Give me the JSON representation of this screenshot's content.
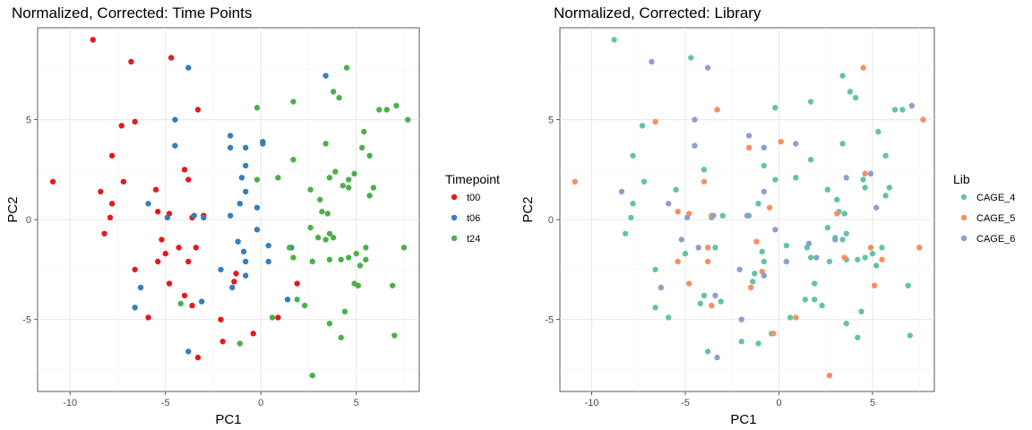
{
  "chart_data": [
    {
      "type": "scatter",
      "title": "Normalized, Corrected: Time Points",
      "xlabel": "PC1",
      "ylabel": "PC2",
      "xlim": [
        -11.7,
        8.3
      ],
      "ylim": [
        -8.6,
        9.6
      ],
      "xticks": [
        -10,
        -5,
        0,
        5
      ],
      "yticks": [
        -5,
        0,
        5
      ],
      "grid": true,
      "legend": {
        "title": "Timepoint",
        "placement": "right"
      },
      "series": [
        {
          "name": "t00",
          "color": "#e41a1c",
          "points": [
            [
              -8.8,
              9.0
            ],
            [
              -6.8,
              7.9
            ],
            [
              -4.7,
              8.1
            ],
            [
              -3.3,
              5.5
            ],
            [
              -7.3,
              4.7
            ],
            [
              -6.6,
              4.9
            ],
            [
              -7.8,
              3.2
            ],
            [
              -4.0,
              2.5
            ],
            [
              -10.9,
              1.9
            ],
            [
              -7.2,
              1.9
            ],
            [
              -5.5,
              1.5
            ],
            [
              -3.8,
              2.0
            ],
            [
              -8.4,
              1.4
            ],
            [
              -7.8,
              0.8
            ],
            [
              -7.9,
              0.1
            ],
            [
              -8.2,
              -0.7
            ],
            [
              -4.8,
              0.3
            ],
            [
              -5.4,
              0.4
            ],
            [
              -3.6,
              0.1
            ],
            [
              -3.0,
              0.2
            ],
            [
              -5.2,
              -1.0
            ],
            [
              -5.0,
              -1.7
            ],
            [
              -4.3,
              -1.4
            ],
            [
              -3.4,
              -1.4
            ],
            [
              -5.4,
              -2.1
            ],
            [
              -3.8,
              -2.1
            ],
            [
              -6.6,
              -2.5
            ],
            [
              -4.8,
              -3.2
            ],
            [
              -4.0,
              -3.8
            ],
            [
              -1.4,
              -3.1
            ],
            [
              -3.6,
              -4.3
            ],
            [
              -5.9,
              -4.9
            ],
            [
              -2.1,
              -5.0
            ],
            [
              -0.4,
              -5.7
            ],
            [
              0.9,
              -4.9
            ],
            [
              -2.0,
              -6.1
            ],
            [
              -3.3,
              -6.9
            ],
            [
              -1.3,
              -2.7
            ],
            [
              1.9,
              -3.2
            ]
          ]
        },
        {
          "name": "t06",
          "color": "#377eb8",
          "points": [
            [
              -3.8,
              7.6
            ],
            [
              -4.5,
              5.0
            ],
            [
              -4.5,
              3.7
            ],
            [
              -1.6,
              4.2
            ],
            [
              -1.6,
              3.6
            ],
            [
              -0.8,
              3.6
            ],
            [
              0.1,
              3.9
            ],
            [
              0.1,
              3.8
            ],
            [
              -0.8,
              2.7
            ],
            [
              -1.0,
              2.1
            ],
            [
              -0.8,
              1.4
            ],
            [
              -1.1,
              0.8
            ],
            [
              -1.6,
              0.2
            ],
            [
              -5.9,
              0.8
            ],
            [
              -4.9,
              0.1
            ],
            [
              -3.5,
              0.2
            ],
            [
              -3.0,
              0.1
            ],
            [
              -0.2,
              0.6
            ],
            [
              -0.2,
              -0.5
            ],
            [
              -1.2,
              -1.1
            ],
            [
              -0.9,
              -1.6
            ],
            [
              -2.1,
              -2.5
            ],
            [
              -0.8,
              -2.1
            ],
            [
              0.4,
              -1.3
            ],
            [
              1.6,
              -1.4
            ],
            [
              0.4,
              -2.1
            ],
            [
              -1.5,
              -3.4
            ],
            [
              -0.8,
              -2.8
            ],
            [
              -6.3,
              -3.4
            ],
            [
              -6.6,
              -4.4
            ],
            [
              -3.1,
              -4.1
            ],
            [
              1.4,
              -4.0
            ],
            [
              3.4,
              7.2
            ],
            [
              -3.8,
              -6.6
            ]
          ]
        },
        {
          "name": "t24",
          "color": "#4daf4a",
          "points": [
            [
              4.5,
              7.6
            ],
            [
              3.8,
              6.4
            ],
            [
              4.1,
              6.1
            ],
            [
              6.2,
              5.5
            ],
            [
              6.6,
              5.5
            ],
            [
              7.1,
              5.7
            ],
            [
              7.7,
              5.0
            ],
            [
              -0.2,
              5.6
            ],
            [
              1.7,
              5.9
            ],
            [
              5.4,
              4.4
            ],
            [
              3.4,
              3.8
            ],
            [
              5.3,
              3.6
            ],
            [
              5.7,
              3.2
            ],
            [
              1.7,
              3.0
            ],
            [
              3.6,
              2.1
            ],
            [
              3.9,
              2.4
            ],
            [
              4.9,
              2.3
            ],
            [
              4.6,
              2.0
            ],
            [
              4.6,
              1.6
            ],
            [
              4.3,
              1.7
            ],
            [
              5.9,
              1.6
            ],
            [
              5.7,
              1.2
            ],
            [
              -0.2,
              2.0
            ],
            [
              0.9,
              2.1
            ],
            [
              2.6,
              1.5
            ],
            [
              3.1,
              1.0
            ],
            [
              3.2,
              0.4
            ],
            [
              3.5,
              0.3
            ],
            [
              2.6,
              -0.4
            ],
            [
              3.6,
              -0.7
            ],
            [
              3.0,
              -0.9
            ],
            [
              3.4,
              -1.0
            ],
            [
              3.8,
              -0.9
            ],
            [
              1.5,
              -1.4
            ],
            [
              1.7,
              -1.9
            ],
            [
              2.7,
              -2.1
            ],
            [
              3.6,
              -2.0
            ],
            [
              4.2,
              -2.0
            ],
            [
              4.6,
              -1.9
            ],
            [
              5.0,
              -1.7
            ],
            [
              5.5,
              -2.0
            ],
            [
              5.5,
              -1.4
            ],
            [
              5.2,
              -2.3
            ],
            [
              7.5,
              -1.4
            ],
            [
              4.9,
              -3.2
            ],
            [
              5.1,
              -3.3
            ],
            [
              6.9,
              -3.3
            ],
            [
              1.9,
              -4.0
            ],
            [
              2.3,
              -4.3
            ],
            [
              0.6,
              -4.9
            ],
            [
              3.6,
              -5.2
            ],
            [
              4.4,
              -4.6
            ],
            [
              -1.1,
              -6.2
            ],
            [
              7.0,
              -5.8
            ],
            [
              4.2,
              -5.9
            ],
            [
              2.7,
              -7.8
            ],
            [
              -4.2,
              -4.2
            ]
          ]
        }
      ]
    },
    {
      "type": "scatter",
      "title": "Normalized, Corrected: Library",
      "xlabel": "PC1",
      "ylabel": "PC2",
      "xlim": [
        -11.7,
        8.3
      ],
      "ylim": [
        -8.6,
        9.6
      ],
      "xticks": [
        -10,
        -5,
        0,
        5
      ],
      "yticks": [
        -5,
        0,
        5
      ],
      "grid": true,
      "legend": {
        "title": "Lib",
        "placement": "right"
      },
      "series": [
        {
          "name": "CAGE_4",
          "color": "#66c2a5",
          "points": [
            [
              -8.8,
              9.0
            ],
            [
              -4.7,
              8.1
            ],
            [
              3.4,
              7.2
            ],
            [
              3.8,
              6.4
            ],
            [
              4.1,
              6.1
            ],
            [
              -0.2,
              5.6
            ],
            [
              1.7,
              5.9
            ],
            [
              6.2,
              5.5
            ],
            [
              6.6,
              5.5
            ],
            [
              -7.3,
              4.7
            ],
            [
              -7.8,
              3.2
            ],
            [
              5.3,
              4.4
            ],
            [
              5.7,
              3.2
            ],
            [
              3.4,
              3.8
            ],
            [
              -0.8,
              3.6
            ],
            [
              -4.0,
              2.5
            ],
            [
              -7.2,
              1.9
            ],
            [
              -5.5,
              1.5
            ],
            [
              0.9,
              2.1
            ],
            [
              1.7,
              3.0
            ],
            [
              -0.2,
              2.0
            ],
            [
              -0.8,
              2.7
            ],
            [
              4.5,
              2.0
            ],
            [
              4.6,
              1.6
            ],
            [
              5.9,
              1.6
            ],
            [
              5.7,
              1.2
            ],
            [
              2.6,
              1.5
            ],
            [
              3.1,
              1.0
            ],
            [
              -7.8,
              0.8
            ],
            [
              -7.9,
              0.1
            ],
            [
              -8.2,
              -0.7
            ],
            [
              -3.6,
              0.1
            ],
            [
              -3.0,
              0.2
            ],
            [
              -1.1,
              0.8
            ],
            [
              -1.6,
              0.2
            ],
            [
              3.2,
              0.4
            ],
            [
              3.5,
              0.3
            ],
            [
              2.6,
              -0.4
            ],
            [
              3.6,
              -0.7
            ],
            [
              3.0,
              -0.9
            ],
            [
              3.4,
              -1.0
            ],
            [
              -5.0,
              -1.7
            ],
            [
              -3.4,
              -1.4
            ],
            [
              -0.9,
              -1.6
            ],
            [
              -0.8,
              -2.1
            ],
            [
              0.4,
              -1.3
            ],
            [
              1.5,
              -1.4
            ],
            [
              1.7,
              -1.9
            ],
            [
              2.7,
              -2.1
            ],
            [
              3.6,
              -2.0
            ],
            [
              4.2,
              -2.0
            ],
            [
              4.6,
              -1.9
            ],
            [
              5.0,
              -1.7
            ],
            [
              5.5,
              -1.4
            ],
            [
              5.2,
              -2.3
            ],
            [
              -6.6,
              -2.5
            ],
            [
              -4.0,
              -3.8
            ],
            [
              -1.3,
              -2.7
            ],
            [
              -3.1,
              -4.1
            ],
            [
              1.4,
              -4.0
            ],
            [
              1.9,
              -4.0
            ],
            [
              2.3,
              -4.3
            ],
            [
              0.6,
              -4.9
            ],
            [
              3.6,
              -5.2
            ],
            [
              4.4,
              -4.6
            ],
            [
              -5.9,
              -4.9
            ],
            [
              -6.6,
              -4.4
            ],
            [
              6.9,
              -3.3
            ],
            [
              7.0,
              -5.8
            ],
            [
              4.2,
              -5.9
            ],
            [
              -2.0,
              -6.1
            ],
            [
              -1.1,
              -6.2
            ],
            [
              -3.8,
              -6.6
            ],
            [
              -4.2,
              -4.2
            ],
            [
              -1.4,
              -3.1
            ],
            [
              0.4,
              -2.1
            ],
            [
              -0.4,
              -5.7
            ],
            [
              1.9,
              -3.2
            ]
          ]
        },
        {
          "name": "CAGE_5",
          "color": "#fc8d62",
          "points": [
            [
              4.5,
              7.6
            ],
            [
              -3.3,
              5.5
            ],
            [
              -6.6,
              4.9
            ],
            [
              0.1,
              3.9
            ],
            [
              7.7,
              5.0
            ],
            [
              -1.6,
              3.6
            ],
            [
              -4.0,
              1.9
            ],
            [
              -10.9,
              1.9
            ],
            [
              4.6,
              2.3
            ],
            [
              -5.4,
              0.4
            ],
            [
              -4.8,
              0.3
            ],
            [
              -3.6,
              0.2
            ],
            [
              -0.5,
              0.6
            ],
            [
              3.1,
              0.3
            ],
            [
              -3.8,
              -1.4
            ],
            [
              -5.4,
              -2.1
            ],
            [
              -3.8,
              -2.1
            ],
            [
              -1.2,
              -1.1
            ],
            [
              -0.9,
              -2.6
            ],
            [
              3.5,
              -1.9
            ],
            [
              4.9,
              -1.4
            ],
            [
              5.5,
              -2.0
            ],
            [
              5.1,
              -3.3
            ],
            [
              7.5,
              -1.4
            ],
            [
              -4.8,
              -3.2
            ],
            [
              -3.6,
              -4.3
            ],
            [
              -1.5,
              -3.4
            ],
            [
              -0.3,
              -5.7
            ],
            [
              0.9,
              -4.9
            ],
            [
              2.7,
              -7.8
            ]
          ]
        },
        {
          "name": "CAGE_6",
          "color": "#8da0cb",
          "points": [
            [
              -6.8,
              7.9
            ],
            [
              -3.8,
              7.6
            ],
            [
              -4.5,
              5.0
            ],
            [
              -4.5,
              3.7
            ],
            [
              -1.6,
              4.2
            ],
            [
              -0.8,
              3.6
            ],
            [
              3.6,
              2.1
            ],
            [
              4.9,
              2.3
            ],
            [
              7.1,
              5.7
            ],
            [
              -8.4,
              1.4
            ],
            [
              -5.9,
              0.8
            ],
            [
              -4.9,
              0.1
            ],
            [
              -3.5,
              0.2
            ],
            [
              -0.8,
              1.4
            ],
            [
              -1.7,
              0.2
            ],
            [
              0.9,
              3.8
            ],
            [
              5.2,
              0.6
            ],
            [
              -5.2,
              -1.0
            ],
            [
              -4.3,
              -1.4
            ],
            [
              -2.1,
              -2.5
            ],
            [
              -0.2,
              -0.5
            ],
            [
              1.6,
              -1.2
            ],
            [
              0.4,
              -2.1
            ],
            [
              3.0,
              -1.0
            ],
            [
              -6.3,
              -3.4
            ],
            [
              -3.4,
              -3.8
            ],
            [
              -2.0,
              -5.0
            ],
            [
              -0.8,
              -2.8
            ],
            [
              2.0,
              -1.9
            ],
            [
              -3.3,
              -6.9
            ]
          ]
        }
      ]
    }
  ]
}
